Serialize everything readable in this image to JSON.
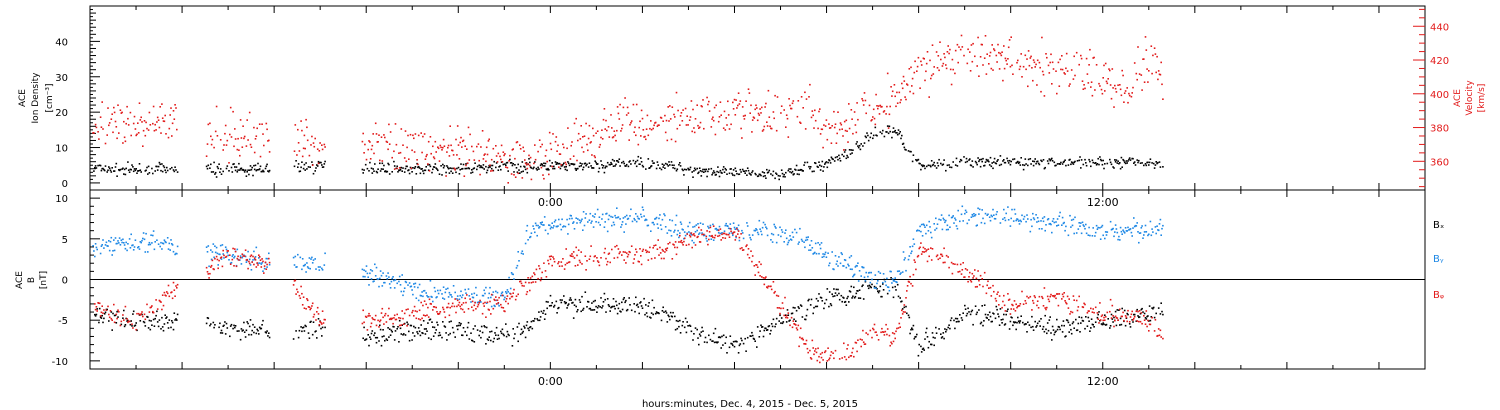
{
  "x_axis_title": "hours:minutes, Dec.  4, 2015 - Dec.  5, 2015",
  "colors": {
    "black": "#000000",
    "blue": "#1e88e5",
    "red": "#e21a1a"
  },
  "chart_data": [
    {
      "type": "scatter",
      "panel": "top",
      "left_axis_label": [
        "ACE",
        "Ion Density",
        "[cm⁻³]"
      ],
      "right_axis_label": [
        "ACE",
        "Velocity",
        "[km/s]"
      ],
      "x_tick_labels": [
        "0:00",
        "12:00"
      ],
      "x_tick_hours": [
        0,
        12
      ],
      "xlim_hours": [
        -10,
        19
      ],
      "data_end_hour": 13.3,
      "ylim_left": [
        -2,
        50
      ],
      "yticks_left": [
        0,
        10,
        20,
        30,
        40
      ],
      "ylim_right": [
        343,
        452
      ],
      "yticks_right": [
        360,
        380,
        400,
        420,
        440
      ],
      "grid": false,
      "data_gaps_hours": [
        [
          -8.1,
          -7.5
        ],
        [
          -6.1,
          -5.6
        ],
        [
          -4.9,
          -4.1
        ]
      ],
      "series": [
        {
          "color": "black",
          "axis": "left",
          "x": [
            -10,
            -8.5,
            -7.5,
            -6.5,
            -5,
            -4,
            -2,
            -1,
            0,
            1,
            2,
            3,
            4,
            5,
            5.5,
            6,
            6.5,
            7,
            7.5,
            8,
            9,
            10,
            11,
            12,
            13,
            13.3
          ],
          "y": [
            4,
            4,
            4,
            4,
            5,
            4.5,
            4,
            5,
            5,
            5,
            6,
            4,
            3,
            3,
            4,
            6,
            9,
            14,
            15,
            5,
            6,
            6,
            6,
            6,
            6,
            6
          ]
        },
        {
          "color": "red",
          "axis": "right",
          "x": [
            -10,
            -9,
            -8.5,
            -7.5,
            -6.5,
            -5,
            -4,
            -3,
            -2,
            -1,
            0,
            1,
            1.5,
            2,
            3,
            4,
            5,
            5.5,
            6,
            7,
            7.5,
            8,
            9,
            10,
            11,
            12,
            12.5,
            13,
            13.3
          ],
          "y": [
            383,
            380,
            385,
            374,
            375,
            371,
            371,
            369,
            365,
            362,
            365,
            375,
            385,
            380,
            388,
            390,
            386,
            395,
            380,
            390,
            400,
            415,
            425,
            418,
            415,
            410,
            405,
            420,
            412
          ]
        }
      ]
    },
    {
      "type": "scatter",
      "panel": "bottom",
      "left_axis_label": [
        "ACE",
        "B",
        "[nT]"
      ],
      "x_tick_labels": [
        "0:00",
        "12:00"
      ],
      "x_tick_hours": [
        0,
        12
      ],
      "xlim_hours": [
        -10,
        19
      ],
      "data_end_hour": 13.3,
      "ylim": [
        -11,
        11
      ],
      "yticks": [
        -10,
        -5,
        0,
        5,
        10
      ],
      "zero_line": true,
      "grid": false,
      "data_gaps_hours": [
        [
          -8.1,
          -7.5
        ],
        [
          -6.1,
          -5.6
        ],
        [
          -4.9,
          -4.1
        ]
      ],
      "legend": [
        "Bₓ",
        "Bᵧ",
        "Bᵩ"
      ],
      "series": [
        {
          "color": "black",
          "legend_label": "Bₓ",
          "x": [
            -10,
            -9,
            -8,
            -7,
            -6,
            -5,
            -4,
            -3,
            -2,
            -1,
            -0.5,
            0,
            1,
            2,
            3,
            4,
            5,
            6,
            7,
            7.5,
            8,
            9,
            10,
            11,
            12,
            13,
            13.3
          ],
          "y": [
            -4,
            -5,
            -5,
            -6,
            -6.5,
            -6,
            -7,
            -6,
            -6,
            -7,
            -6,
            -3,
            -3,
            -3,
            -6,
            -8,
            -5,
            -2,
            -1,
            -1,
            -8,
            -4,
            -5,
            -6,
            -5,
            -4,
            -3
          ]
        },
        {
          "color": "blue",
          "legend_label": "Bᵧ",
          "x": [
            -10,
            -9,
            -8,
            -7,
            -6,
            -5,
            -4,
            -3,
            -2,
            -1,
            -0.5,
            0,
            1,
            2,
            3,
            4,
            5,
            6,
            6.5,
            7,
            7.5,
            8,
            9,
            10,
            11,
            12,
            13,
            13.3
          ],
          "y": [
            4,
            5,
            4,
            3,
            2,
            2,
            1,
            -1,
            -2,
            -2,
            6,
            7,
            7.5,
            7.5,
            6,
            6,
            6,
            3,
            2,
            0,
            0,
            6,
            8,
            7.5,
            7,
            6,
            6,
            7
          ]
        },
        {
          "color": "red",
          "legend_label": "Bᵩ",
          "x": [
            -10,
            -9,
            -8,
            -7,
            -6,
            -5,
            -4,
            -3,
            -2,
            -1,
            -0.5,
            0,
            1,
            2,
            3,
            4,
            5,
            5.5,
            6,
            6.5,
            7,
            7.5,
            8,
            9,
            10,
            11,
            12,
            13,
            13.3
          ],
          "y": [
            -3,
            -5,
            0,
            3,
            2,
            -5,
            -5,
            -4,
            -3,
            -3,
            0,
            2,
            3,
            3,
            5,
            6,
            -3,
            -8,
            -9.5,
            -9,
            -6,
            -7,
            4,
            1,
            -3,
            -2,
            -4,
            -5,
            -7
          ]
        }
      ]
    }
  ]
}
